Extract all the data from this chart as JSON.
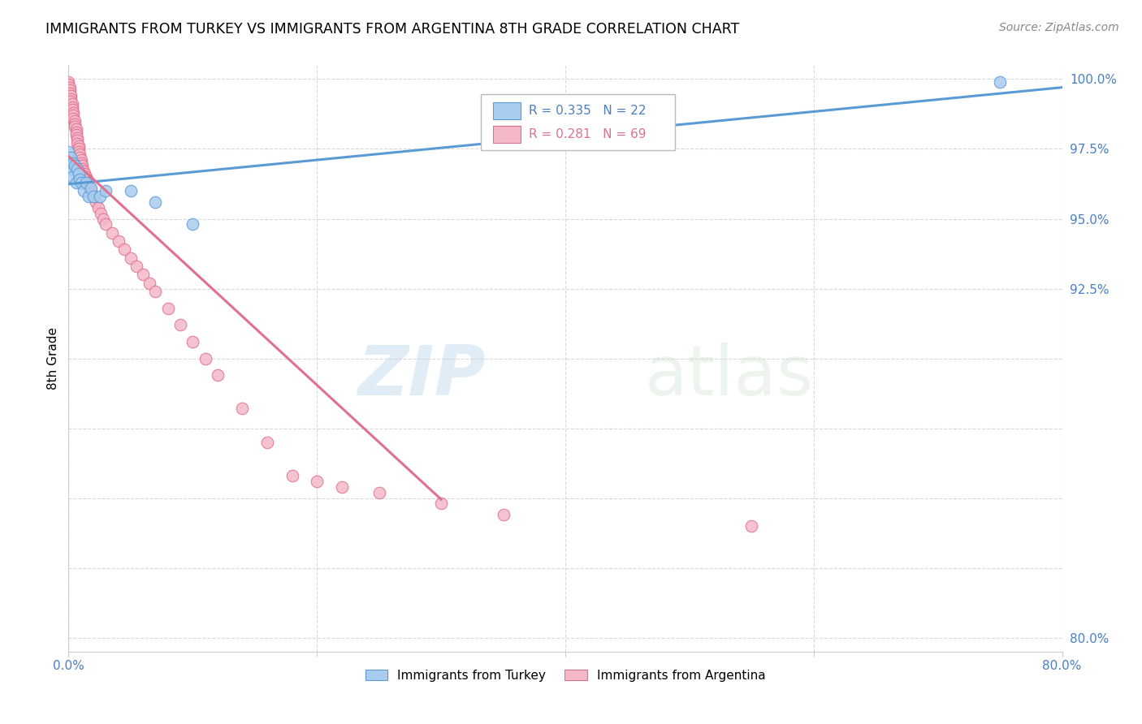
{
  "title": "IMMIGRANTS FROM TURKEY VS IMMIGRANTS FROM ARGENTINA 8TH GRADE CORRELATION CHART",
  "source": "Source: ZipAtlas.com",
  "ylabel": "8th Grade",
  "xlim": [
    0.0,
    0.8
  ],
  "ylim": [
    0.795,
    1.005
  ],
  "xtick_positions": [
    0.0,
    0.2,
    0.4,
    0.6,
    0.8
  ],
  "xtick_labels": [
    "0.0%",
    "",
    "",
    "",
    "80.0%"
  ],
  "ytick_positions": [
    0.8,
    0.825,
    0.85,
    0.875,
    0.9,
    0.925,
    0.95,
    0.975,
    1.0
  ],
  "ytick_labels": [
    "80.0%",
    "",
    "",
    "",
    "",
    "92.5%",
    "95.0%",
    "97.5%",
    "100.0%"
  ],
  "r_turkey": 0.335,
  "n_turkey": 22,
  "r_argentina": 0.281,
  "n_argentina": 69,
  "turkey_fill_color": "#a8ccee",
  "turkey_edge_color": "#5b9bd5",
  "argentina_fill_color": "#f4b8c8",
  "argentina_edge_color": "#e07090",
  "turkey_line_color": "#5b9bd5",
  "argentina_line_color": "#e07090",
  "turkey_x": [
    0.0,
    0.001,
    0.002,
    0.003,
    0.004,
    0.005,
    0.006,
    0.007,
    0.008,
    0.009,
    0.01,
    0.012,
    0.014,
    0.016,
    0.018,
    0.02,
    0.025,
    0.03,
    0.05,
    0.07,
    0.1,
    0.75
  ],
  "turkey_y": [
    0.974,
    0.968,
    0.972,
    0.965,
    0.97,
    0.969,
    0.963,
    0.968,
    0.966,
    0.964,
    0.963,
    0.96,
    0.963,
    0.958,
    0.961,
    0.958,
    0.958,
    0.96,
    0.96,
    0.956,
    0.948,
    0.999
  ],
  "argentina_x": [
    0.0,
    0.0,
    0.001,
    0.001,
    0.001,
    0.002,
    0.002,
    0.002,
    0.003,
    0.003,
    0.003,
    0.004,
    0.004,
    0.004,
    0.005,
    0.005,
    0.005,
    0.006,
    0.006,
    0.006,
    0.007,
    0.007,
    0.007,
    0.008,
    0.008,
    0.008,
    0.009,
    0.009,
    0.01,
    0.01,
    0.011,
    0.011,
    0.012,
    0.013,
    0.014,
    0.015,
    0.015,
    0.016,
    0.017,
    0.018,
    0.019,
    0.02,
    0.022,
    0.024,
    0.026,
    0.028,
    0.03,
    0.035,
    0.04,
    0.045,
    0.05,
    0.055,
    0.06,
    0.065,
    0.07,
    0.08,
    0.09,
    0.1,
    0.11,
    0.12,
    0.14,
    0.16,
    0.18,
    0.2,
    0.22,
    0.25,
    0.3,
    0.35,
    0.55
  ],
  "argentina_y": [
    0.999,
    0.998,
    0.997,
    0.996,
    0.995,
    0.994,
    0.993,
    0.992,
    0.991,
    0.99,
    0.989,
    0.988,
    0.987,
    0.986,
    0.985,
    0.984,
    0.983,
    0.982,
    0.981,
    0.98,
    0.979,
    0.978,
    0.977,
    0.976,
    0.975,
    0.974,
    0.973,
    0.972,
    0.971,
    0.97,
    0.969,
    0.968,
    0.967,
    0.966,
    0.965,
    0.964,
    0.963,
    0.962,
    0.961,
    0.96,
    0.959,
    0.958,
    0.956,
    0.954,
    0.952,
    0.95,
    0.948,
    0.945,
    0.942,
    0.939,
    0.936,
    0.933,
    0.93,
    0.927,
    0.924,
    0.918,
    0.912,
    0.906,
    0.9,
    0.894,
    0.882,
    0.87,
    0.858,
    0.856,
    0.854,
    0.852,
    0.848,
    0.844,
    0.84
  ],
  "watermark_zip": "ZIP",
  "watermark_atlas": "atlas"
}
